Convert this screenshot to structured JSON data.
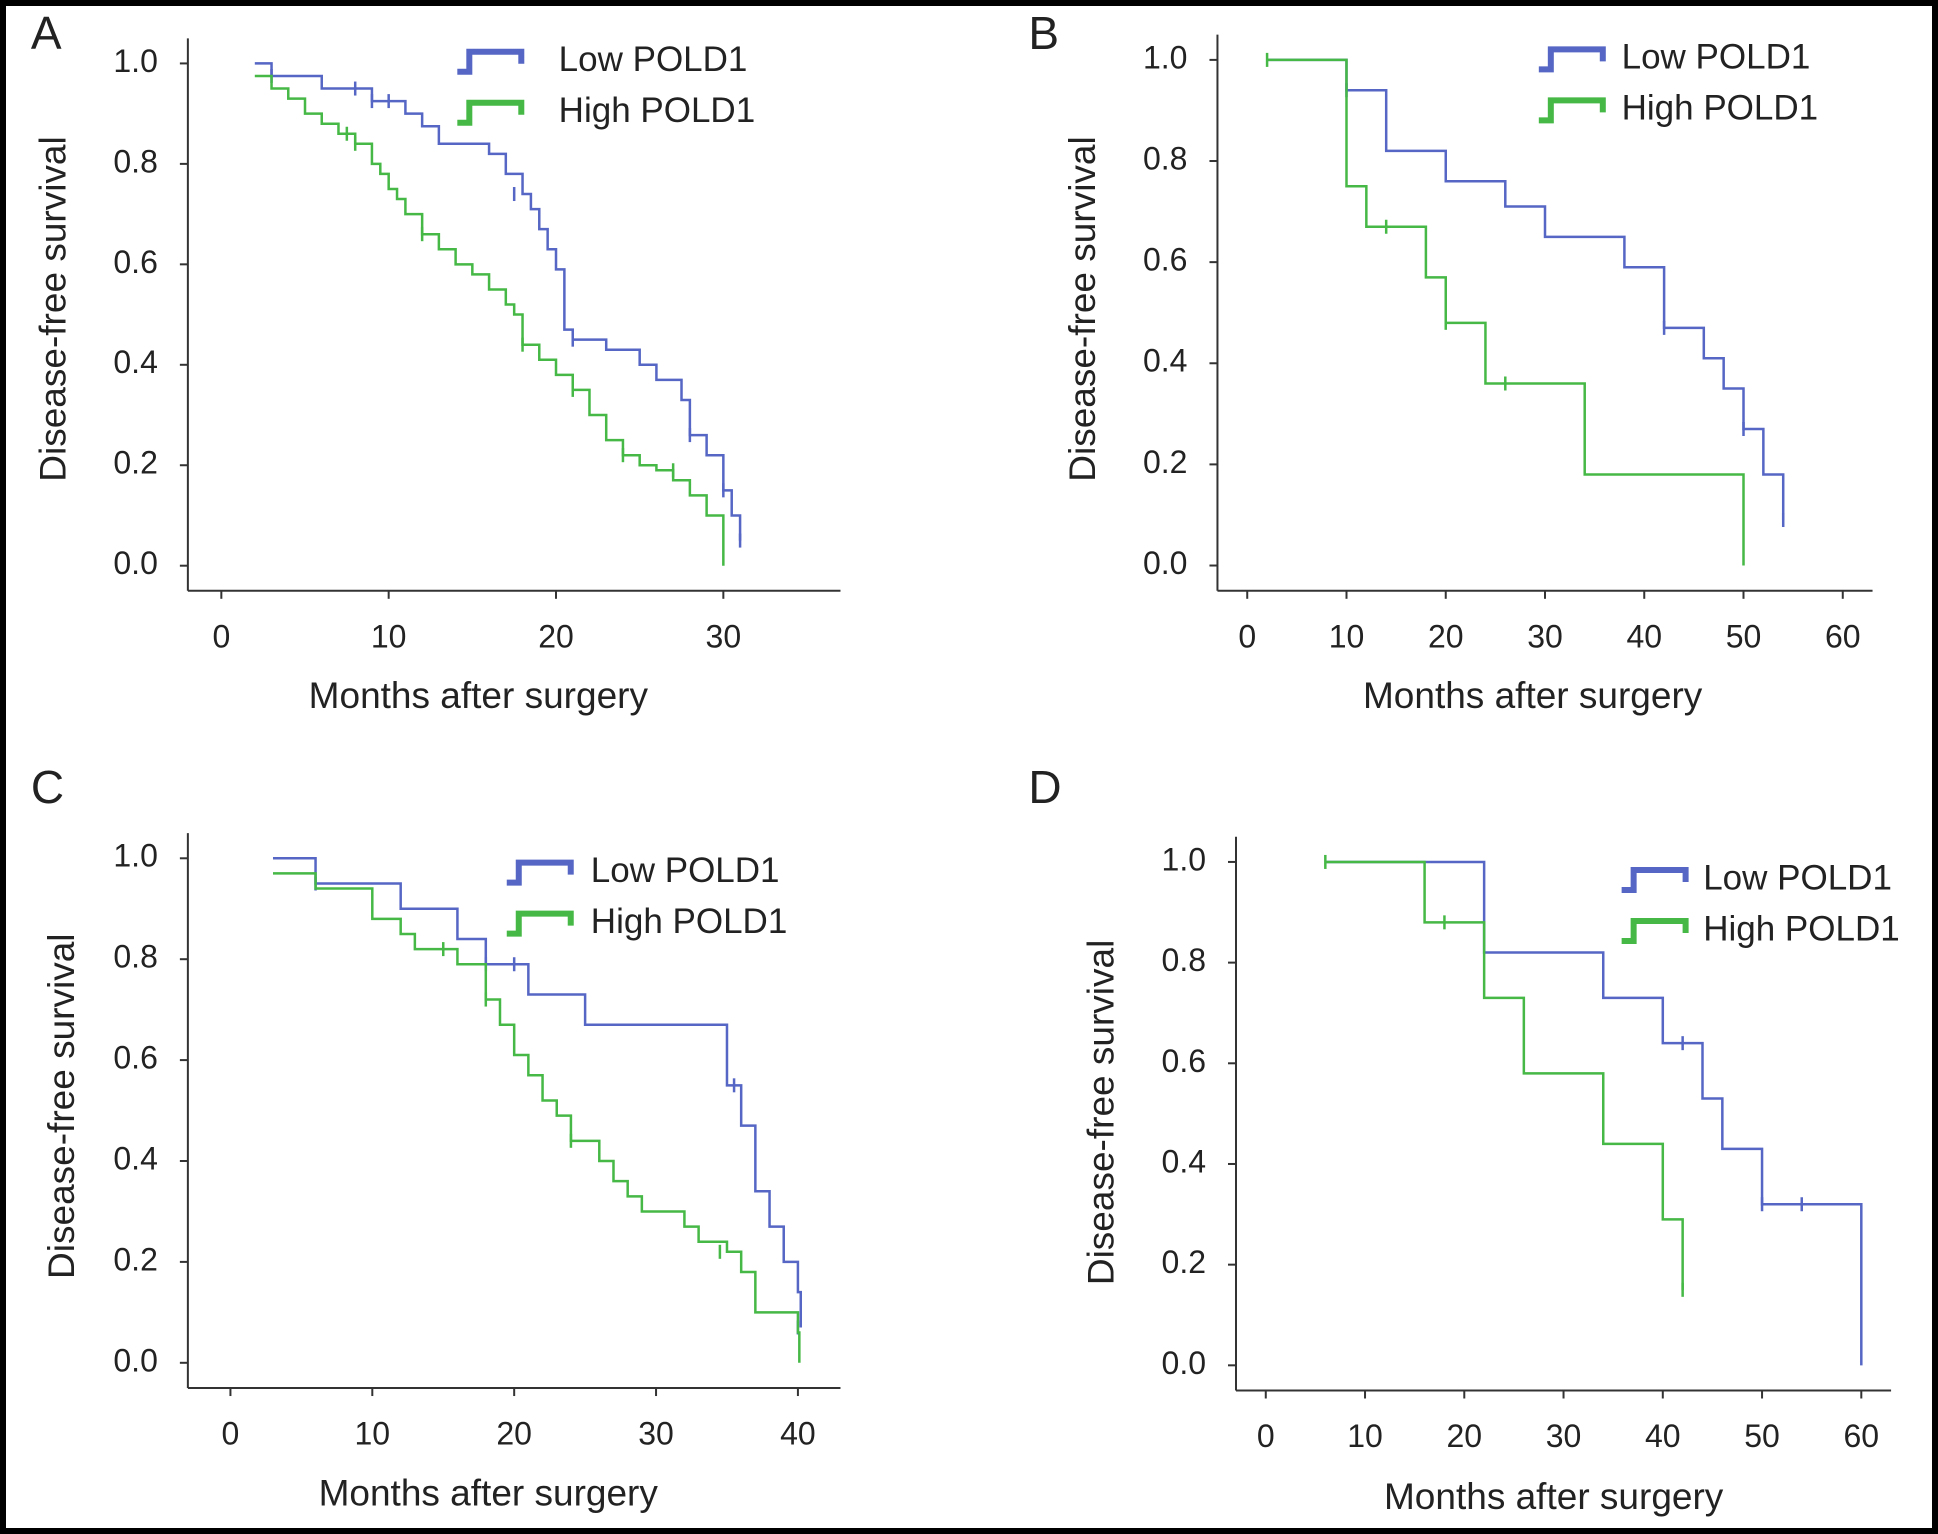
{
  "chart_data": [
    {
      "type": "step",
      "label": "A",
      "xlabel": "Months after surgery",
      "ylabel": "Disease-free survival",
      "xlim": [
        -2,
        37
      ],
      "xticks": [
        0,
        10,
        20,
        30
      ],
      "ylim": [
        -0.05,
        1.05
      ],
      "yticks": [
        {
          "value": 0,
          "label": "0.0"
        },
        0.2,
        0.4,
        0.6,
        0.8,
        {
          "value": 1,
          "label": "1.0"
        }
      ],
      "series": [
        {
          "name": "Low POLD1",
          "color": "#5566c4",
          "x": [
            2,
            3,
            6,
            9,
            11,
            12,
            13,
            16,
            17,
            18,
            18.5,
            19,
            19.5,
            20,
            20.5,
            21,
            23,
            25,
            26,
            27.5,
            28,
            29,
            30,
            30.5,
            31
          ],
          "values": [
            1.0,
            0.975,
            0.95,
            0.925,
            0.9,
            0.875,
            0.84,
            0.82,
            0.78,
            0.74,
            0.71,
            0.67,
            0.63,
            0.59,
            0.47,
            0.45,
            0.43,
            0.4,
            0.37,
            0.33,
            0.26,
            0.22,
            0.15,
            0.1,
            0.05
          ],
          "censored_x": [
            3,
            8,
            9,
            10,
            17.5,
            21,
            28,
            30,
            31
          ],
          "censored_values": [
            0.975,
            0.95,
            0.925,
            0.925,
            0.74,
            0.45,
            0.26,
            0.15,
            0.05
          ]
        },
        {
          "name": "High POLD1",
          "color": "#45b845",
          "x": [
            2,
            3,
            4,
            5,
            6,
            7,
            8,
            9,
            9.5,
            10,
            10.5,
            11,
            12,
            13,
            14,
            15,
            16,
            17,
            17.5,
            18,
            19,
            20,
            21,
            22,
            23,
            24,
            25,
            26,
            27,
            28,
            29,
            30
          ],
          "values": [
            0.975,
            0.95,
            0.93,
            0.9,
            0.88,
            0.86,
            0.84,
            0.8,
            0.78,
            0.75,
            0.73,
            0.7,
            0.66,
            0.63,
            0.6,
            0.58,
            0.55,
            0.52,
            0.5,
            0.44,
            0.41,
            0.38,
            0.35,
            0.3,
            0.25,
            0.22,
            0.2,
            0.19,
            0.17,
            0.14,
            0.1,
            0.0
          ],
          "censored_x": [
            7.5,
            8,
            12,
            18,
            21,
            24,
            27
          ],
          "censored_values": [
            0.86,
            0.84,
            0.66,
            0.44,
            0.35,
            0.22,
            0.19
          ]
        }
      ]
    },
    {
      "type": "step",
      "label": "B",
      "xlabel": "Months after surgery",
      "ylabel": "Disease-free survival",
      "xlim": [
        -3,
        63
      ],
      "xticks": [
        0,
        10,
        20,
        30,
        40,
        50,
        60
      ],
      "ylim": [
        -0.05,
        1.05
      ],
      "yticks": [
        {
          "value": 0,
          "label": "0.0"
        },
        0.2,
        0.4,
        0.6,
        0.8,
        {
          "value": 1,
          "label": "1.0"
        }
      ],
      "series": [
        {
          "name": "Low POLD1",
          "color": "#5566c4",
          "x": [
            2,
            10,
            14,
            20,
            26,
            30,
            38,
            42,
            46,
            48,
            50,
            52,
            54
          ],
          "values": [
            1.0,
            0.94,
            0.82,
            0.76,
            0.71,
            0.65,
            0.59,
            0.47,
            0.41,
            0.35,
            0.27,
            0.18,
            0.09
          ],
          "censored_x": [
            10,
            42,
            50,
            54
          ],
          "censored_values": [
            0.94,
            0.47,
            0.27,
            0.09
          ]
        },
        {
          "name": "High POLD1",
          "color": "#45b845",
          "x": [
            2,
            10,
            12,
            18,
            20,
            24,
            34,
            50
          ],
          "values": [
            1.0,
            0.75,
            0.67,
            0.57,
            0.48,
            0.36,
            0.18,
            0.0
          ],
          "censored_x": [
            2,
            14,
            20,
            26
          ],
          "censored_values": [
            1.0,
            0.67,
            0.48,
            0.36
          ]
        }
      ]
    },
    {
      "type": "step",
      "label": "C",
      "xlabel": "Months after surgery",
      "ylabel": "Disease-free survival",
      "xlim": [
        -3,
        43
      ],
      "xticks": [
        0,
        10,
        20,
        30,
        40
      ],
      "ylim": [
        -0.05,
        1.05
      ],
      "yticks": [
        {
          "value": 0,
          "label": "0.0"
        },
        0.2,
        0.4,
        0.6,
        0.8,
        {
          "value": 1,
          "label": "1.0"
        }
      ],
      "series": [
        {
          "name": "Low POLD1",
          "color": "#5566c4",
          "x": [
            3,
            6,
            12,
            16,
            18,
            21,
            25,
            35,
            36,
            37,
            38,
            39,
            40,
            40.2
          ],
          "values": [
            1.0,
            0.95,
            0.9,
            0.84,
            0.79,
            0.73,
            0.67,
            0.55,
            0.47,
            0.34,
            0.27,
            0.2,
            0.14,
            0.07
          ],
          "censored_x": [
            6,
            18,
            20,
            35.5,
            40
          ],
          "censored_values": [
            0.95,
            0.79,
            0.79,
            0.55,
            0.07
          ]
        },
        {
          "name": "High POLD1",
          "color": "#45b845",
          "x": [
            3,
            6,
            10,
            12,
            13,
            16,
            18,
            19,
            20,
            21,
            22,
            23,
            24,
            26,
            27,
            28,
            29,
            32,
            33,
            35,
            36,
            37,
            40,
            40.1
          ],
          "values": [
            0.97,
            0.94,
            0.88,
            0.85,
            0.82,
            0.79,
            0.72,
            0.67,
            0.61,
            0.57,
            0.52,
            0.49,
            0.44,
            0.4,
            0.36,
            0.33,
            0.3,
            0.27,
            0.24,
            0.22,
            0.18,
            0.1,
            0.06,
            0.0
          ],
          "censored_x": [
            15,
            18,
            24,
            34.5
          ],
          "censored_values": [
            0.82,
            0.72,
            0.44,
            0.22
          ]
        }
      ]
    },
    {
      "type": "step",
      "label": "D",
      "xlabel": "Months after surgery",
      "ylabel": "Disease-free survival",
      "xlim": [
        -3,
        63
      ],
      "xticks": [
        0,
        10,
        20,
        30,
        40,
        50,
        60
      ],
      "ylim": [
        -0.05,
        1.05
      ],
      "yticks": [
        {
          "value": 0,
          "label": "0.0"
        },
        0.2,
        0.4,
        0.6,
        0.8,
        {
          "value": 1,
          "label": "1.0"
        }
      ],
      "series": [
        {
          "name": "Low POLD1",
          "color": "#5566c4",
          "x": [
            6,
            22,
            34,
            40,
            44,
            46,
            50,
            60
          ],
          "values": [
            1.0,
            0.82,
            0.73,
            0.64,
            0.53,
            0.43,
            0.32,
            0.0
          ],
          "censored_x": [
            42,
            50,
            54
          ],
          "censored_values": [
            0.64,
            0.32,
            0.32
          ]
        },
        {
          "name": "High POLD1",
          "color": "#45b845",
          "x": [
            6,
            16,
            22,
            26,
            34,
            40,
            42
          ],
          "values": [
            1.0,
            0.88,
            0.73,
            0.58,
            0.44,
            0.29,
            0.15
          ],
          "censored_x": [
            6,
            18,
            42
          ],
          "censored_values": [
            1.0,
            0.88,
            0.15
          ]
        }
      ]
    }
  ]
}
